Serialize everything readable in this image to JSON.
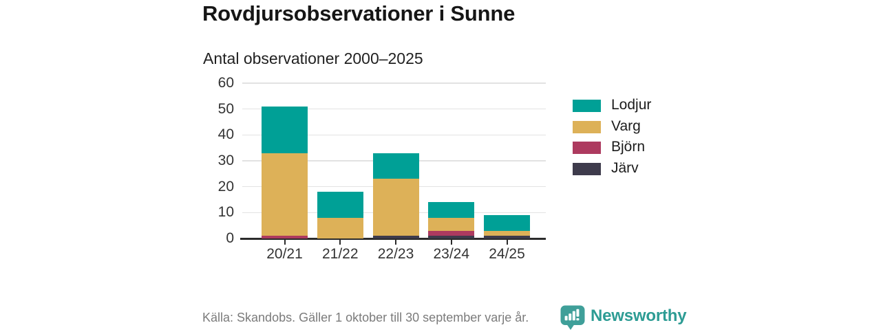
{
  "title": "Rovdjursobservationer i Sunne",
  "subtitle": "Antal observationer 2000–2025",
  "footer": {
    "source": "Källa: Skandobs. Gäller 1 oktober till 30 september varje år.",
    "brand": "Newsworthy"
  },
  "colors": {
    "lodjur": "#00a096",
    "varg": "#ddb158",
    "bjorn": "#ad3a5f",
    "jarv": "#3e3b4c",
    "gridline": "#e2e2e2",
    "axis": "#2b2b2b",
    "footer_text": "#7b7b7b",
    "brand_teal": "#3f9f99",
    "brand_text": "#2d9c94"
  },
  "chart_data": {
    "type": "bar",
    "stacked": true,
    "title": "Rovdjursobservationer i Sunne",
    "subtitle": "Antal observationer 2000–2025",
    "categories": [
      "20/21",
      "21/22",
      "22/23",
      "23/24",
      "24/25"
    ],
    "series": [
      {
        "name": "Lodjur",
        "color": "#00a096",
        "values": [
          18,
          10,
          10,
          6,
          6
        ]
      },
      {
        "name": "Varg",
        "color": "#ddb158",
        "values": [
          32,
          8,
          22,
          5,
          2
        ]
      },
      {
        "name": "Björn",
        "color": "#ad3a5f",
        "values": [
          1,
          0,
          0,
          2,
          0
        ]
      },
      {
        "name": "Järv",
        "color": "#3e3b4c",
        "values": [
          0,
          0,
          1,
          1,
          1
        ]
      }
    ],
    "stack_order_bottom_to_top": [
      "Järv",
      "Björn",
      "Varg",
      "Lodjur"
    ],
    "totals": [
      51,
      18,
      33,
      14,
      9
    ],
    "y_ticks": [
      0,
      10,
      20,
      30,
      40,
      50,
      60
    ],
    "ylim": [
      0,
      60
    ],
    "xlabel": "",
    "ylabel": "",
    "grid": true,
    "legend_position": "right"
  }
}
